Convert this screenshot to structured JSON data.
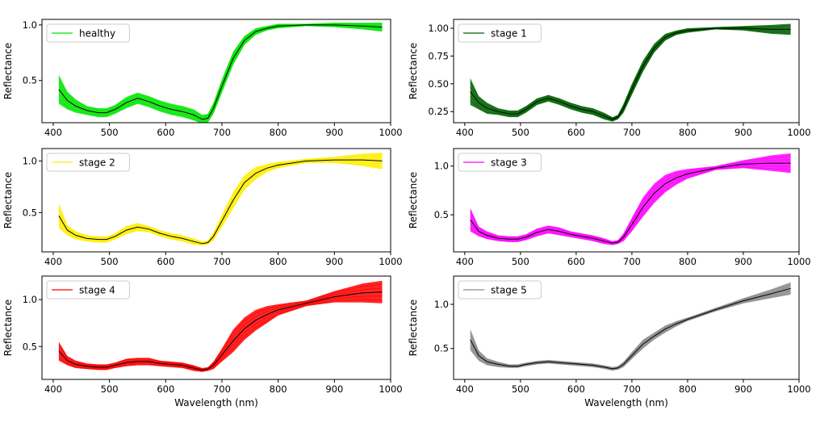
{
  "figure": {
    "xlabel": "Wavelength (nm)",
    "ylabel": "Reflectance"
  },
  "chart_data": [
    {
      "type": "line",
      "legend": "healthy",
      "color": "#00e600",
      "legend_position": "top-left",
      "xlim": [
        380,
        1000
      ],
      "ylim": [
        0.12,
        1.05
      ],
      "yticks": [
        0.5,
        1.0
      ],
      "ytick_labels": [
        "0.5",
        "1.0"
      ],
      "xticks": [
        400,
        500,
        600,
        700,
        800,
        900,
        1000
      ],
      "xtick_labels": [
        "400",
        "500",
        "600",
        "700",
        "800",
        "900",
        "1000"
      ],
      "x": [
        410,
        425,
        440,
        460,
        480,
        495,
        510,
        530,
        550,
        570,
        590,
        610,
        630,
        650,
        665,
        675,
        685,
        700,
        720,
        740,
        760,
        780,
        800,
        850,
        900,
        950,
        985
      ],
      "mean": [
        0.42,
        0.32,
        0.27,
        0.23,
        0.21,
        0.21,
        0.24,
        0.3,
        0.34,
        0.31,
        0.27,
        0.24,
        0.22,
        0.19,
        0.15,
        0.16,
        0.25,
        0.45,
        0.7,
        0.86,
        0.94,
        0.97,
        0.99,
        1.0,
        1.0,
        0.99,
        0.98
      ],
      "spread": [
        0.13,
        0.08,
        0.06,
        0.04,
        0.04,
        0.04,
        0.04,
        0.05,
        0.05,
        0.05,
        0.05,
        0.05,
        0.05,
        0.05,
        0.04,
        0.04,
        0.05,
        0.06,
        0.06,
        0.04,
        0.03,
        0.02,
        0.02,
        0.01,
        0.02,
        0.03,
        0.04
      ]
    },
    {
      "type": "line",
      "legend": "stage 1",
      "color": "#006400",
      "legend_position": "top-left",
      "xlim": [
        380,
        1000
      ],
      "ylim": [
        0.15,
        1.08
      ],
      "yticks": [
        0.25,
        0.5,
        0.75,
        1.0
      ],
      "ytick_labels": [
        "0.25",
        "0.50",
        "0.75",
        "1.00"
      ],
      "xticks": [
        400,
        500,
        600,
        700,
        800,
        900,
        1000
      ],
      "xtick_labels": [
        "400",
        "500",
        "600",
        "700",
        "800",
        "900",
        "1000"
      ],
      "x": [
        410,
        425,
        440,
        460,
        480,
        495,
        510,
        530,
        550,
        570,
        590,
        610,
        630,
        650,
        665,
        675,
        685,
        700,
        720,
        740,
        760,
        780,
        800,
        850,
        900,
        950,
        985
      ],
      "mean": [
        0.43,
        0.33,
        0.28,
        0.25,
        0.23,
        0.23,
        0.27,
        0.34,
        0.37,
        0.34,
        0.3,
        0.27,
        0.25,
        0.21,
        0.18,
        0.2,
        0.28,
        0.45,
        0.66,
        0.82,
        0.92,
        0.96,
        0.98,
        1.0,
        1.0,
        0.99,
        0.99
      ],
      "spread": [
        0.12,
        0.06,
        0.05,
        0.03,
        0.03,
        0.03,
        0.03,
        0.03,
        0.03,
        0.03,
        0.03,
        0.03,
        0.03,
        0.03,
        0.02,
        0.02,
        0.04,
        0.05,
        0.05,
        0.04,
        0.03,
        0.02,
        0.02,
        0.01,
        0.02,
        0.04,
        0.05
      ]
    },
    {
      "type": "line",
      "legend": "stage 2",
      "color": "#ffee00",
      "legend_position": "top-left",
      "xlim": [
        380,
        1000
      ],
      "ylim": [
        0.12,
        1.12
      ],
      "yticks": [
        0.5,
        1.0
      ],
      "ytick_labels": [
        "0.5",
        "1.0"
      ],
      "xticks": [
        400,
        500,
        600,
        700,
        800,
        900,
        1000
      ],
      "xtick_labels": [
        "400",
        "500",
        "600",
        "700",
        "800",
        "900",
        "1000"
      ],
      "x": [
        410,
        425,
        440,
        460,
        480,
        495,
        510,
        530,
        550,
        570,
        590,
        610,
        630,
        650,
        665,
        675,
        685,
        700,
        720,
        740,
        760,
        780,
        800,
        850,
        900,
        950,
        985
      ],
      "mean": [
        0.47,
        0.33,
        0.28,
        0.25,
        0.24,
        0.24,
        0.27,
        0.33,
        0.36,
        0.34,
        0.3,
        0.27,
        0.25,
        0.22,
        0.2,
        0.21,
        0.27,
        0.42,
        0.62,
        0.79,
        0.88,
        0.93,
        0.96,
        1.0,
        1.01,
        1.01,
        1.0
      ],
      "spread": [
        0.12,
        0.05,
        0.04,
        0.03,
        0.03,
        0.03,
        0.03,
        0.04,
        0.04,
        0.03,
        0.03,
        0.03,
        0.03,
        0.03,
        0.02,
        0.02,
        0.04,
        0.06,
        0.08,
        0.07,
        0.06,
        0.04,
        0.03,
        0.02,
        0.03,
        0.06,
        0.08
      ]
    },
    {
      "type": "line",
      "legend": "stage 3",
      "color": "#ff00ff",
      "legend_position": "top-left",
      "xlim": [
        380,
        1000
      ],
      "ylim": [
        0.12,
        1.18
      ],
      "yticks": [
        0.5,
        1.0
      ],
      "ytick_labels": [
        "0.5",
        "1.0"
      ],
      "xticks": [
        400,
        500,
        600,
        700,
        800,
        900,
        1000
      ],
      "xtick_labels": [
        "400",
        "500",
        "600",
        "700",
        "800",
        "900",
        "1000"
      ],
      "x": [
        410,
        425,
        440,
        460,
        480,
        495,
        510,
        530,
        550,
        570,
        590,
        610,
        630,
        650,
        665,
        675,
        685,
        700,
        720,
        740,
        760,
        780,
        800,
        850,
        900,
        950,
        985
      ],
      "mean": [
        0.45,
        0.33,
        0.29,
        0.26,
        0.25,
        0.25,
        0.27,
        0.32,
        0.35,
        0.33,
        0.3,
        0.28,
        0.26,
        0.23,
        0.21,
        0.22,
        0.27,
        0.4,
        0.58,
        0.72,
        0.82,
        0.88,
        0.92,
        0.98,
        1.02,
        1.03,
        1.03
      ],
      "spread": [
        0.12,
        0.05,
        0.04,
        0.03,
        0.03,
        0.03,
        0.03,
        0.04,
        0.04,
        0.04,
        0.03,
        0.03,
        0.03,
        0.03,
        0.02,
        0.02,
        0.04,
        0.07,
        0.1,
        0.1,
        0.09,
        0.07,
        0.05,
        0.02,
        0.04,
        0.08,
        0.1
      ]
    },
    {
      "type": "line",
      "legend": "stage 4",
      "color": "#ff0000",
      "legend_position": "top-left",
      "xlim": [
        380,
        1000
      ],
      "ylim": [
        0.15,
        1.25
      ],
      "yticks": [
        0.5,
        1.0
      ],
      "ytick_labels": [
        "0.5",
        "1.0"
      ],
      "xticks": [
        400,
        500,
        600,
        700,
        800,
        900,
        1000
      ],
      "xtick_labels": [
        "400",
        "500",
        "600",
        "700",
        "800",
        "900",
        "1000"
      ],
      "x": [
        410,
        425,
        440,
        460,
        480,
        495,
        510,
        530,
        550,
        570,
        590,
        610,
        630,
        650,
        665,
        675,
        685,
        700,
        720,
        740,
        760,
        780,
        800,
        850,
        900,
        950,
        985
      ],
      "mean": [
        0.45,
        0.35,
        0.31,
        0.29,
        0.28,
        0.28,
        0.3,
        0.33,
        0.34,
        0.34,
        0.32,
        0.31,
        0.3,
        0.27,
        0.25,
        0.26,
        0.3,
        0.41,
        0.56,
        0.69,
        0.78,
        0.84,
        0.89,
        0.96,
        1.03,
        1.07,
        1.08
      ],
      "spread": [
        0.1,
        0.05,
        0.04,
        0.03,
        0.03,
        0.03,
        0.03,
        0.04,
        0.04,
        0.04,
        0.03,
        0.03,
        0.03,
        0.03,
        0.02,
        0.02,
        0.04,
        0.07,
        0.12,
        0.12,
        0.11,
        0.09,
        0.06,
        0.03,
        0.06,
        0.1,
        0.12
      ]
    },
    {
      "type": "line",
      "legend": "stage 5",
      "color": "#8c8c8c",
      "legend_position": "top-left",
      "xlim": [
        380,
        1000
      ],
      "ylim": [
        0.15,
        1.32
      ],
      "yticks": [
        0.5,
        1.0
      ],
      "ytick_labels": [
        "0.5",
        "1.0"
      ],
      "xticks": [
        400,
        500,
        600,
        700,
        800,
        900,
        1000
      ],
      "xtick_labels": [
        "400",
        "500",
        "600",
        "700",
        "800",
        "900",
        "1000"
      ],
      "x": [
        410,
        425,
        440,
        460,
        480,
        495,
        510,
        530,
        550,
        570,
        590,
        610,
        630,
        650,
        665,
        675,
        685,
        700,
        720,
        740,
        760,
        780,
        800,
        850,
        900,
        950,
        985
      ],
      "mean": [
        0.6,
        0.42,
        0.35,
        0.32,
        0.3,
        0.3,
        0.32,
        0.34,
        0.35,
        0.34,
        0.33,
        0.32,
        0.31,
        0.29,
        0.27,
        0.28,
        0.32,
        0.42,
        0.55,
        0.64,
        0.72,
        0.78,
        0.83,
        0.94,
        1.04,
        1.12,
        1.18
      ],
      "spread": [
        0.12,
        0.06,
        0.04,
        0.03,
        0.02,
        0.02,
        0.02,
        0.02,
        0.02,
        0.02,
        0.02,
        0.02,
        0.02,
        0.02,
        0.02,
        0.02,
        0.03,
        0.04,
        0.05,
        0.04,
        0.04,
        0.03,
        0.02,
        0.02,
        0.03,
        0.05,
        0.07
      ]
    }
  ]
}
